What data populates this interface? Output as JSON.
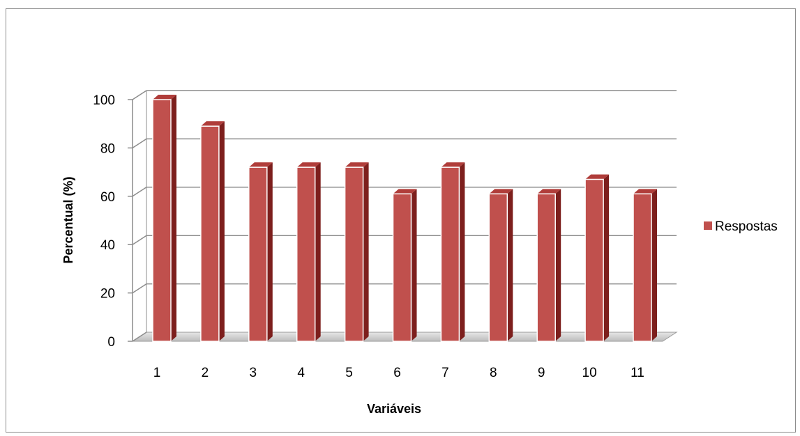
{
  "chart_data": {
    "type": "bar",
    "categories": [
      "1",
      "2",
      "3",
      "4",
      "5",
      "6",
      "7",
      "8",
      "9",
      "10",
      "11"
    ],
    "series": [
      {
        "name": "Respostas",
        "values": [
          100,
          89,
          72,
          72,
          72,
          61,
          72,
          61,
          61,
          67,
          61
        ],
        "color": "#c0504d"
      }
    ],
    "xlabel": "Variáveis",
    "ylabel": "Percentual (%)",
    "ylim": [
      0,
      100
    ],
    "yticks": [
      "0",
      "20",
      "40",
      "60",
      "80",
      "100"
    ],
    "grid": true,
    "legend_position": "right",
    "style": "3d-column"
  }
}
